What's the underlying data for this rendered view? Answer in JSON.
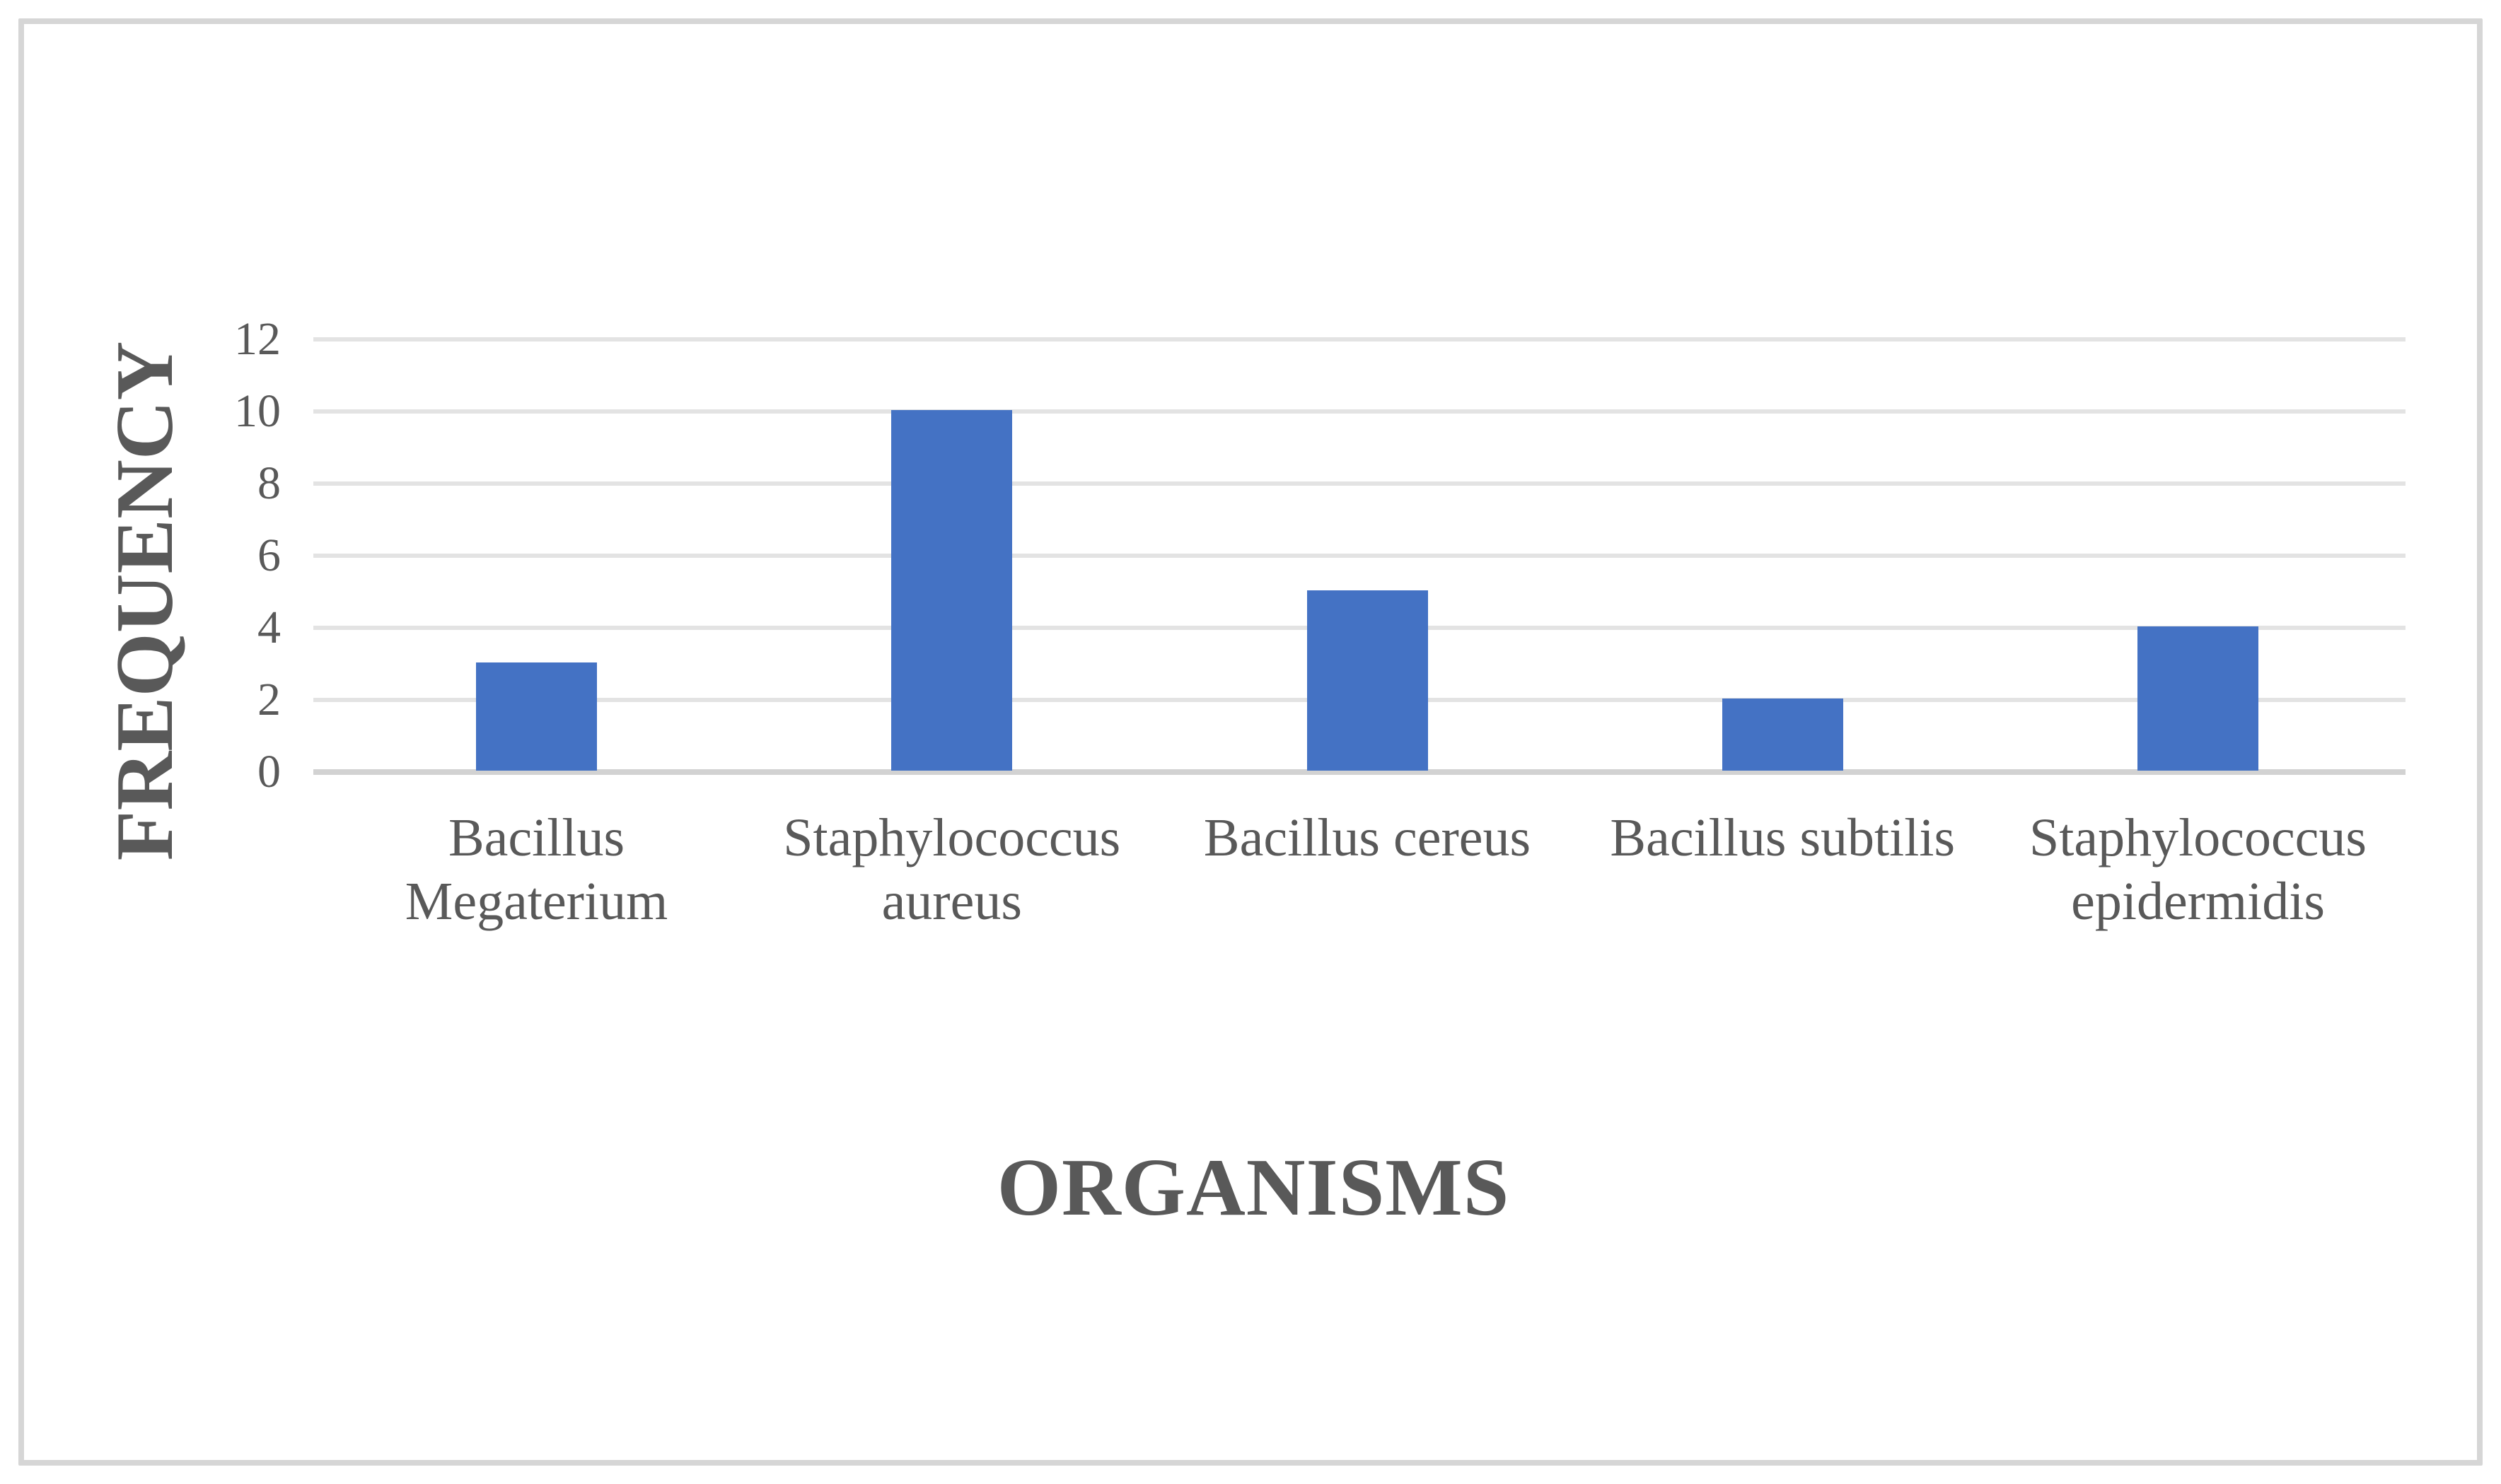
{
  "chart_data": {
    "type": "bar",
    "title": "",
    "xlabel": "ORGANISMS",
    "ylabel": "FREQUENCY",
    "categories": [
      "Bacillus Megaterium",
      "Staphylococcus aureus",
      "Bacillus cereus",
      "Bacillus subtilis",
      "Staphylococcus epidermidis"
    ],
    "values": [
      3,
      10,
      5,
      2,
      4
    ],
    "ylim": [
      0,
      12
    ],
    "yticks": [
      0,
      2,
      4,
      6,
      8,
      10,
      12
    ],
    "grid": "horizontal-only",
    "legend": "none",
    "bar_color": "#4472C4",
    "gridline_color": "#E3E3E3",
    "axis_line_color": "#D2D2D2",
    "text_color": "#595959",
    "border_color": "#D6D6D6"
  }
}
